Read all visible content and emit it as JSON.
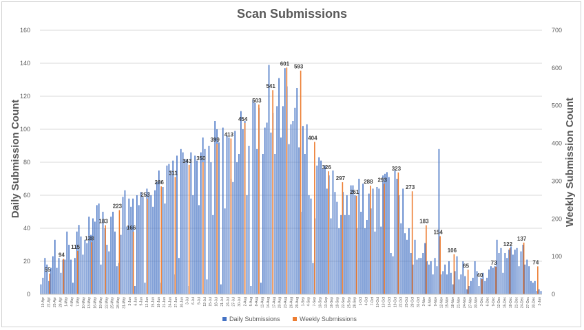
{
  "chart_data": {
    "type": "bar",
    "title": "Scan Submissions",
    "ylabel": "Daily Submission Count",
    "y2label": "Weekly Submission Count",
    "ylim": [
      0,
      160
    ],
    "y2lim": [
      0,
      700
    ],
    "yticks": [
      0,
      20,
      40,
      60,
      80,
      100,
      120,
      140,
      160
    ],
    "y2ticks": [
      0,
      100,
      200,
      300,
      400,
      500,
      600,
      700
    ],
    "grid": true,
    "legend_position": "bottom",
    "colors": {
      "daily": "#4472C4",
      "weekly": "#ED7D31"
    },
    "x_tick_labels": [
      "19-Apr",
      "22-Apr",
      "25-Apr",
      "28-Apr",
      "1-May",
      "4-May",
      "7-May",
      "10-May",
      "13-May",
      "16-May",
      "19-May",
      "22-May",
      "25-May",
      "28-May",
      "31-May",
      "3-Jun",
      "6-Jun",
      "9-Jun",
      "12-Jun",
      "15-Jun",
      "18-Jun",
      "21-Jun",
      "24-Jun",
      "27-Jun",
      "30-Jun",
      "3-Jul",
      "6-Jul",
      "9-Jul",
      "12-Jul",
      "15-Jul",
      "18-Jul",
      "21-Jul",
      "24-Jul",
      "27-Jul",
      "30-Jul",
      "2-Aug",
      "5-Aug",
      "8-Aug",
      "11-Aug",
      "14-Aug",
      "17-Aug",
      "20-Aug",
      "23-Aug",
      "26-Aug",
      "29-Aug",
      "1-Sep",
      "4-Sep",
      "7-Sep",
      "10-Sep",
      "13-Sep",
      "16-Sep",
      "19-Sep",
      "22-Sep",
      "25-Sep",
      "28-Sep",
      "1-Oct",
      "4-Oct",
      "7-Oct",
      "10-Oct",
      "13-Oct",
      "16-Oct",
      "19-Oct",
      "22-Oct",
      "25-Oct",
      "28-Oct",
      "31-Oct",
      "3-Nov",
      "6-Nov",
      "9-Nov",
      "12-Nov",
      "15-Nov",
      "18-Nov",
      "21-Nov",
      "24-Nov",
      "27-Nov",
      "30-Nov",
      "3-Dec",
      "6-Dec",
      "9-Dec",
      "12-Dec",
      "15-Dec",
      "18-Dec",
      "21-Dec",
      "24-Dec",
      "27-Dec",
      "30-Dec",
      "2-Jan"
    ],
    "series": [
      {
        "name": "Daily Submissions",
        "axis": "left",
        "values": [
          6,
          10,
          22,
          18,
          8,
          16,
          23,
          33,
          16,
          22,
          13,
          21,
          21,
          38,
          30,
          21,
          7,
          22,
          38,
          42,
          35,
          24,
          33,
          31,
          47,
          36,
          46,
          44,
          54,
          55,
          18,
          50,
          40,
          30,
          26,
          47,
          50,
          38,
          17,
          19,
          36,
          59,
          63,
          41,
          58,
          53,
          58,
          5,
          60,
          54,
          62,
          59,
          7,
          64,
          62,
          60,
          53,
          63,
          68,
          75,
          7,
          65,
          55,
          78,
          79,
          75,
          81,
          12,
          84,
          22,
          88,
          86,
          82,
          82,
          5,
          86,
          60,
          84,
          81,
          54,
          86,
          95,
          88,
          9,
          90,
          80,
          48,
          105,
          100,
          92,
          6,
          101,
          52,
          96,
          95,
          70,
          68,
          99,
          80,
          85,
          111,
          100,
          105,
          60,
          90,
          5,
          118,
          116,
          88,
          113,
          7,
          85,
          101,
          104,
          139,
          98,
          110,
          85,
          114,
          131,
          95,
          114,
          137,
          126,
          91,
          103,
          105,
          113,
          125,
          89,
          50,
          102,
          85,
          103,
          60,
          58,
          19,
          46,
          78,
          83,
          81,
          76,
          78,
          64,
          72,
          46,
          75,
          62,
          56,
          40,
          48,
          62,
          48,
          60,
          48,
          66,
          66,
          60,
          40,
          70,
          50,
          67,
          40,
          45,
          61,
          52,
          64,
          38,
          65,
          64,
          41,
          72,
          73,
          74,
          71,
          25,
          23,
          75,
          70,
          60,
          43,
          64,
          37,
          33,
          40,
          25,
          18,
          33,
          21,
          22,
          22,
          25,
          31,
          20,
          18,
          20,
          12,
          22,
          17,
          88,
          12,
          14,
          18,
          12,
          20,
          13,
          6,
          14,
          23,
          9,
          12,
          20,
          11,
          3,
          5,
          8,
          10,
          20,
          14,
          5,
          10,
          13,
          8,
          10,
          15,
          17,
          16,
          17,
          33,
          25,
          28,
          13,
          25,
          22,
          27,
          29,
          24,
          27,
          28,
          17,
          26,
          30,
          18,
          21,
          17,
          8,
          7,
          8,
          2,
          3,
          2
        ],
        "rows_note": ""
      },
      {
        "name": "Weekly Submissions",
        "axis": "right",
        "values": [
          55,
          94,
          115,
          138,
          183,
          223,
          166,
          253,
          286,
          311,
          343,
          350,
          399,
          413,
          454,
          503,
          541,
          601,
          593,
          404,
          326,
          297,
          261,
          288,
          293,
          323,
          273,
          183,
          154,
          106,
          65,
          40,
          73,
          122,
          137,
          74
        ],
        "labels": [
          "55",
          "94",
          "115",
          "138",
          "183",
          "223",
          "166",
          "253",
          "286",
          "311",
          "343",
          "350",
          "399",
          "413",
          "454",
          "503",
          "541",
          "601",
          "593",
          "404",
          "326",
          "297",
          "261",
          "288",
          "293",
          "323",
          "273",
          "183",
          "154",
          "106",
          "65",
          "40",
          "73",
          "122",
          "137",
          "74"
        ]
      }
    ]
  }
}
